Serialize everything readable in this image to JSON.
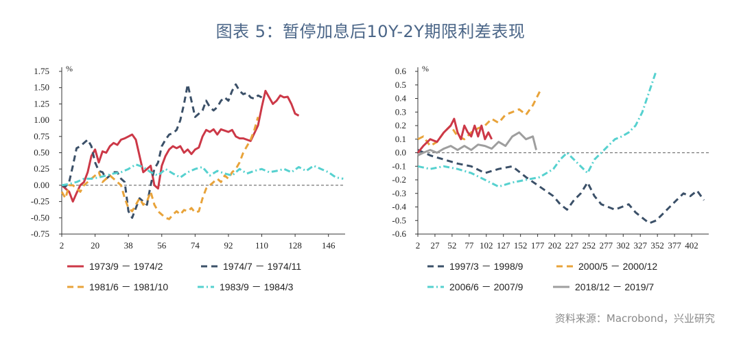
{
  "title": "图表 5：暂停加息后10Y-2Y期限利差表现",
  "source": "资料来源：Macrobond，兴业研究",
  "chart_data": [
    {
      "type": "line",
      "unit": "%",
      "ylim": [
        -0.75,
        1.75
      ],
      "yticks": [
        "1.75",
        "1.50",
        "1.25",
        "1.00",
        "0.75",
        "0.50",
        "0.25",
        "0.00",
        "-0.25",
        "-0.50",
        "-0.75"
      ],
      "xlim": [
        2,
        155
      ],
      "xticks": [
        "2",
        "20",
        "38",
        "56",
        "74",
        "92",
        "110",
        "128",
        "146"
      ],
      "reference_line": 0,
      "legend_position": "bottom",
      "series": [
        {
          "name": "1973/9 － 1974/2",
          "color": "#cc3847",
          "dash": "solid",
          "x": [
            2,
            4,
            6,
            8,
            10,
            12,
            14,
            16,
            18,
            20,
            22,
            24,
            26,
            28,
            30,
            32,
            34,
            36,
            38,
            40,
            42,
            44,
            46,
            48,
            50,
            52,
            54,
            56,
            58,
            60,
            62,
            64,
            66,
            68,
            70,
            72,
            74,
            76,
            78,
            80,
            82,
            84,
            86,
            88,
            90,
            92,
            94,
            96,
            98,
            100,
            102,
            104,
            106,
            108,
            110,
            112,
            114,
            116,
            118,
            120,
            122,
            124,
            126,
            128,
            130
          ],
          "y": [
            0.0,
            -0.05,
            -0.1,
            -0.25,
            -0.12,
            0.0,
            0.05,
            0.2,
            0.45,
            0.55,
            0.35,
            0.52,
            0.5,
            0.6,
            0.65,
            0.62,
            0.7,
            0.72,
            0.75,
            0.78,
            0.7,
            0.45,
            0.2,
            0.25,
            0.3,
            0.0,
            -0.05,
            0.3,
            0.45,
            0.55,
            0.6,
            0.57,
            0.6,
            0.5,
            0.55,
            0.48,
            0.55,
            0.58,
            0.75,
            0.85,
            0.82,
            0.86,
            0.78,
            0.86,
            0.84,
            0.82,
            0.85,
            0.75,
            0.72,
            0.72,
            0.7,
            0.68,
            0.8,
            0.92,
            1.2,
            1.45,
            1.35,
            1.25,
            1.3,
            1.38,
            1.35,
            1.36,
            1.25,
            1.1,
            1.07
          ]
        },
        {
          "name": "1974/7 － 1974/11",
          "color": "#3b5068",
          "dash": "dash",
          "x": [
            2,
            4,
            6,
            8,
            10,
            12,
            14,
            16,
            18,
            20,
            22,
            24,
            26,
            28,
            30,
            32,
            34,
            36,
            38,
            40,
            42,
            44,
            46,
            48,
            50,
            52,
            54,
            56,
            58,
            60,
            62,
            64,
            66,
            68,
            70,
            72,
            74,
            76,
            78,
            80,
            82,
            84,
            86,
            88,
            90,
            92,
            94,
            96,
            98,
            100,
            102,
            104,
            106,
            108,
            110
          ],
          "y": [
            0.0,
            -0.02,
            0.05,
            0.3,
            0.57,
            0.6,
            0.65,
            0.7,
            0.6,
            0.35,
            0.22,
            0.2,
            0.1,
            0.15,
            0.2,
            0.2,
            0.1,
            0.05,
            -0.4,
            -0.5,
            -0.35,
            -0.2,
            -0.25,
            -0.3,
            0.0,
            0.25,
            0.35,
            0.6,
            0.7,
            0.78,
            0.8,
            0.85,
            1.0,
            1.25,
            1.55,
            1.3,
            1.05,
            1.1,
            1.15,
            1.3,
            1.2,
            1.15,
            1.2,
            1.3,
            1.35,
            1.3,
            1.45,
            1.55,
            1.45,
            1.4,
            1.42,
            1.35,
            1.33,
            1.38,
            1.35
          ]
        },
        {
          "name": "1981/6 － 1981/10",
          "color": "#e8a33a",
          "dash": "dash",
          "x": [
            2,
            4,
            6,
            8,
            10,
            12,
            14,
            16,
            18,
            20,
            22,
            24,
            26,
            28,
            30,
            32,
            34,
            36,
            38,
            40,
            42,
            44,
            46,
            48,
            50,
            52,
            54,
            56,
            58,
            60,
            62,
            64,
            66,
            68,
            70,
            72,
            74,
            76,
            78,
            80,
            82,
            84,
            86,
            88,
            90,
            92,
            94,
            96,
            98,
            100,
            102,
            104,
            106,
            108
          ],
          "y": [
            -0.1,
            -0.2,
            0.0,
            0.0,
            -0.05,
            -0.1,
            0.0,
            0.05,
            0.1,
            0.15,
            0.2,
            0.05,
            0.1,
            0.15,
            0.1,
            0.05,
            0.0,
            -0.2,
            -0.35,
            -0.4,
            -0.3,
            -0.2,
            -0.3,
            -0.25,
            -0.1,
            -0.3,
            -0.4,
            -0.45,
            -0.5,
            -0.52,
            -0.45,
            -0.4,
            -0.45,
            -0.38,
            -0.4,
            -0.35,
            -0.42,
            -0.4,
            -0.2,
            -0.05,
            0.0,
            0.05,
            0.1,
            0.05,
            0.15,
            0.1,
            0.2,
            0.25,
            0.35,
            0.5,
            0.6,
            0.7,
            0.85,
            1.05
          ]
        },
        {
          "name": "1983/9 － 1984/3",
          "color": "#56d1cf",
          "dash": "dashdot",
          "x": [
            2,
            6,
            10,
            14,
            18,
            22,
            26,
            30,
            34,
            38,
            42,
            46,
            50,
            54,
            58,
            62,
            66,
            70,
            74,
            78,
            82,
            86,
            90,
            94,
            98,
            102,
            106,
            110,
            114,
            118,
            122,
            126,
            130,
            134,
            138,
            142,
            146,
            150,
            154
          ],
          "y": [
            0.0,
            0.02,
            0.05,
            0.1,
            0.1,
            0.12,
            0.15,
            0.18,
            0.2,
            0.25,
            0.32,
            0.28,
            0.2,
            0.15,
            0.25,
            0.18,
            0.12,
            0.2,
            0.25,
            0.28,
            0.15,
            0.22,
            0.18,
            0.15,
            0.25,
            0.18,
            0.22,
            0.25,
            0.2,
            0.22,
            0.25,
            0.2,
            0.28,
            0.22,
            0.3,
            0.25,
            0.2,
            0.12,
            0.1
          ]
        }
      ]
    },
    {
      "type": "line",
      "unit": "%",
      "ylim": [
        -0.6,
        0.6
      ],
      "yticks": [
        "0.6",
        "0.5",
        "0.4",
        "0.3",
        "0.2",
        "0.1",
        "0.0",
        "-0.1",
        "-0.2",
        "-0.3",
        "-0.4",
        "-0.5",
        "-0.6"
      ],
      "xlim": [
        2,
        427
      ],
      "xticks": [
        "2",
        "27",
        "52",
        "77",
        "102",
        "127",
        "152",
        "177",
        "202",
        "227",
        "252",
        "277",
        "302",
        "327",
        "352",
        "377",
        "402"
      ],
      "reference_line": 0,
      "legend_position": "bottom",
      "series": [
        {
          "name": "1997/3 － 1998/9",
          "color": "#3b5068",
          "dash": "dash",
          "x": [
            2,
            20,
            40,
            60,
            80,
            100,
            120,
            140,
            160,
            180,
            200,
            210,
            220,
            230,
            240,
            250,
            260,
            270,
            280,
            290,
            300,
            310,
            320,
            330,
            340,
            350,
            360,
            370,
            380,
            390,
            400,
            410,
            420
          ],
          "y": [
            0.02,
            -0.02,
            -0.05,
            -0.08,
            -0.1,
            -0.15,
            -0.12,
            -0.1,
            -0.18,
            -0.25,
            -0.32,
            -0.38,
            -0.42,
            -0.35,
            -0.3,
            -0.22,
            -0.32,
            -0.38,
            -0.4,
            -0.42,
            -0.4,
            -0.38,
            -0.44,
            -0.48,
            -0.52,
            -0.5,
            -0.45,
            -0.4,
            -0.35,
            -0.3,
            -0.32,
            -0.28,
            -0.35
          ]
        },
        {
          "name": "2000/5 － 2000/12",
          "color": "#e8a33a",
          "dash": "dash",
          "x": [
            2,
            10,
            20,
            30,
            40,
            50,
            60,
            70,
            80,
            90,
            100,
            110,
            120,
            130,
            140,
            150,
            160,
            170,
            180
          ],
          "y": [
            0.1,
            0.12,
            0.05,
            0.08,
            0.15,
            0.2,
            0.12,
            0.1,
            0.15,
            0.18,
            0.2,
            0.25,
            0.22,
            0.28,
            0.3,
            0.32,
            0.28,
            0.35,
            0.45
          ]
        },
        {
          "name": "2006/6 － 2007/9",
          "color": "#56d1cf",
          "dash": "dashdot",
          "x": [
            2,
            20,
            40,
            60,
            80,
            100,
            120,
            140,
            160,
            180,
            200,
            210,
            220,
            230,
            240,
            250,
            260,
            270,
            280,
            290,
            300,
            310,
            320,
            330,
            340,
            350
          ],
          "y": [
            -0.1,
            -0.12,
            -0.1,
            -0.12,
            -0.15,
            -0.2,
            -0.25,
            -0.22,
            -0.2,
            -0.18,
            -0.12,
            -0.05,
            0.0,
            -0.05,
            -0.1,
            -0.15,
            -0.05,
            0.0,
            0.05,
            0.1,
            0.12,
            0.15,
            0.2,
            0.3,
            0.45,
            0.6
          ]
        },
        {
          "name": "2018/12 － 2019/7",
          "color": "#9e9e9e",
          "dash": "solid",
          "x": [
            2,
            10,
            20,
            30,
            40,
            50,
            60,
            70,
            80,
            90,
            100,
            110,
            120,
            130,
            140,
            150,
            160,
            170,
            175
          ],
          "y": [
            -0.02,
            0.0,
            0.02,
            0.0,
            0.03,
            0.05,
            0.02,
            0.05,
            0.02,
            0.06,
            0.05,
            0.03,
            0.08,
            0.05,
            0.12,
            0.15,
            0.1,
            0.12,
            0.02
          ]
        },
        {
          "name": "1973/9 － 1974/2",
          "color": "#cc3847",
          "dash": "solid",
          "legend": false,
          "x": [
            2,
            10,
            20,
            30,
            40,
            50,
            55,
            60,
            65,
            70,
            75,
            80,
            85,
            90,
            95,
            100,
            105,
            110
          ],
          "y": [
            0.0,
            0.05,
            0.1,
            0.08,
            0.15,
            0.2,
            0.25,
            0.15,
            0.1,
            0.2,
            0.15,
            0.12,
            0.2,
            0.12,
            0.2,
            0.1,
            0.15,
            0.1
          ]
        }
      ]
    }
  ]
}
